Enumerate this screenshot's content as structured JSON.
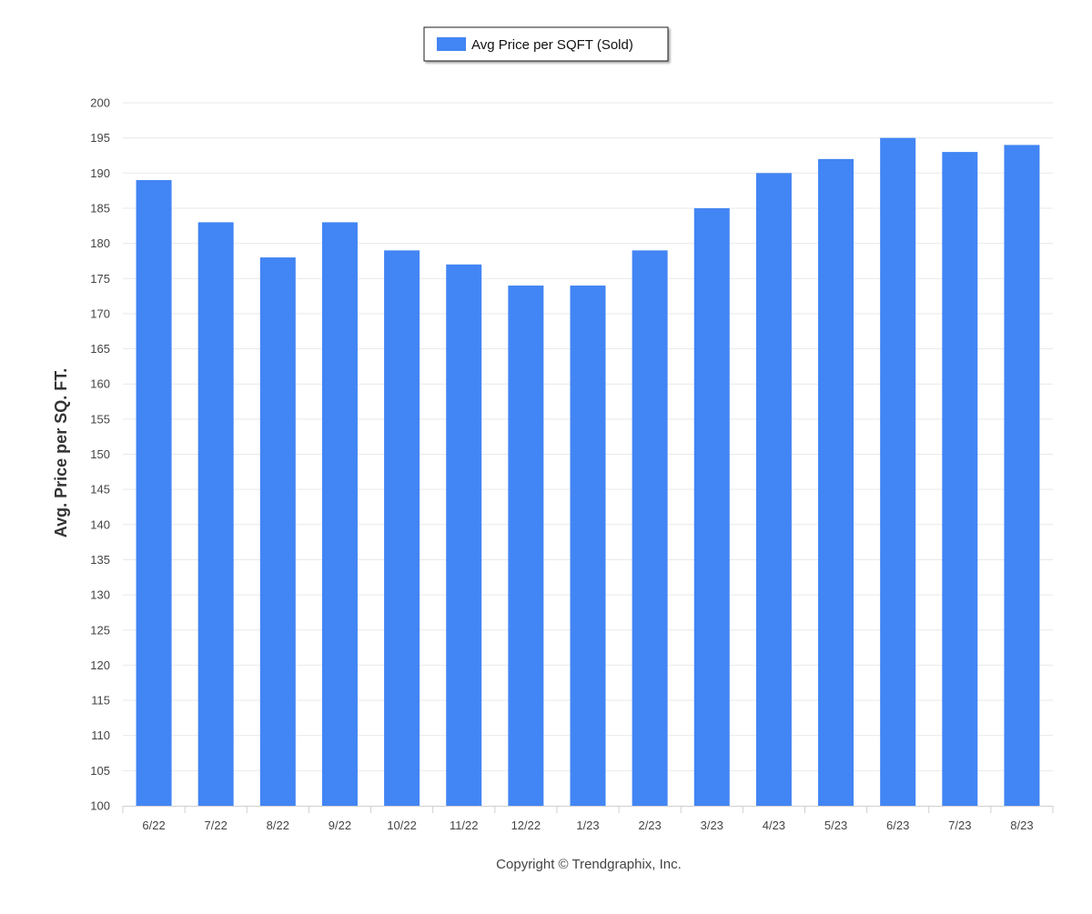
{
  "chart_data": {
    "type": "bar",
    "categories": [
      "6/22",
      "7/22",
      "8/22",
      "9/22",
      "10/22",
      "11/22",
      "12/22",
      "1/23",
      "2/23",
      "3/23",
      "4/23",
      "5/23",
      "6/23",
      "7/23",
      "8/23"
    ],
    "series": [
      {
        "name": "Avg Price per SQFT (Sold)",
        "values": [
          189,
          183,
          178,
          183,
          179,
          177,
          174,
          174,
          179,
          185,
          190,
          192,
          195,
          193,
          194
        ],
        "color": "#4285f4"
      }
    ],
    "title": "",
    "xlabel": "",
    "ylabel": "Avg. Price per SQ. FT.",
    "ylim": [
      100,
      200
    ],
    "yticks": [
      100,
      105,
      110,
      115,
      120,
      125,
      130,
      135,
      140,
      145,
      150,
      155,
      160,
      165,
      170,
      175,
      180,
      185,
      190,
      195,
      200
    ],
    "grid": true,
    "legend_position": "top-center"
  },
  "footer": {
    "copyright": "Copyright © Trendgraphix, Inc."
  }
}
